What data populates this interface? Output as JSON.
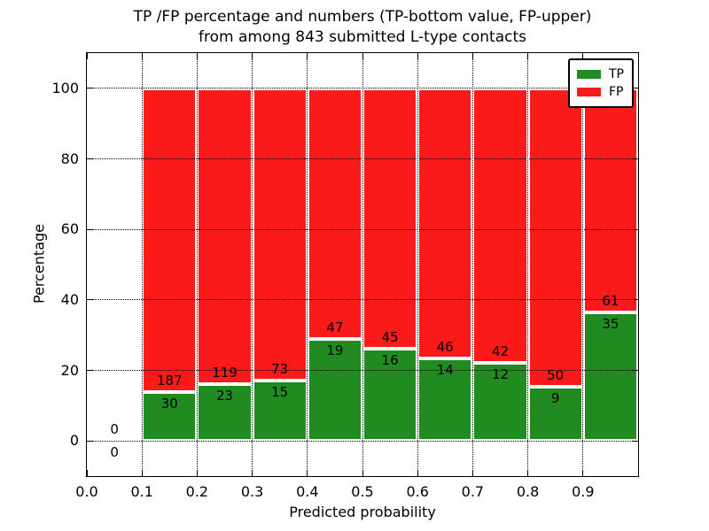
{
  "title": {
    "line1": "TP /FP percentage and numbers (TP-bottom value, FP-upper)",
    "line2": "from among 843 submitted L-type contacts"
  },
  "chart_data": {
    "type": "bar",
    "subtype": "stacked-percentage-histogram",
    "title": "TP /FP percentage and numbers (TP-bottom value, FP-upper) from among 843 submitted L-type contacts",
    "xlabel": "Predicted probability",
    "ylabel": "Percentage",
    "xlim": [
      0.0,
      1.0
    ],
    "ylim": [
      -10,
      110
    ],
    "xtick_values": [
      0.0,
      0.1,
      0.2,
      0.3,
      0.4,
      0.5,
      0.6,
      0.7,
      0.8,
      0.9
    ],
    "xtick_labels": [
      "0.0",
      "0.1",
      "0.2",
      "0.3",
      "0.4",
      "0.5",
      "0.6",
      "0.7",
      "0.8",
      "0.9"
    ],
    "ytick_values": [
      0,
      20,
      40,
      60,
      80,
      100
    ],
    "ytick_labels": [
      "0",
      "20",
      "40",
      "60",
      "80",
      "100"
    ],
    "grid": true,
    "legend": {
      "position": "upper right",
      "entries": [
        {
          "label": "TP",
          "color": "#208b20"
        },
        {
          "label": "FP",
          "color": "#fb1a1a"
        }
      ]
    },
    "bins": [
      {
        "x_start": 0.0,
        "x_end": 0.1,
        "tp": 0,
        "fp": 0,
        "tp_pct": 0.0,
        "fp_pct": 0.0
      },
      {
        "x_start": 0.1,
        "x_end": 0.2,
        "tp": 30,
        "fp": 187,
        "tp_pct": 13.82,
        "fp_pct": 86.18
      },
      {
        "x_start": 0.2,
        "x_end": 0.3,
        "tp": 23,
        "fp": 119,
        "tp_pct": 16.2,
        "fp_pct": 83.8
      },
      {
        "x_start": 0.3,
        "x_end": 0.4,
        "tp": 15,
        "fp": 73,
        "tp_pct": 17.05,
        "fp_pct": 82.95
      },
      {
        "x_start": 0.4,
        "x_end": 0.5,
        "tp": 19,
        "fp": 47,
        "tp_pct": 28.79,
        "fp_pct": 71.21
      },
      {
        "x_start": 0.5,
        "x_end": 0.6,
        "tp": 16,
        "fp": 45,
        "tp_pct": 26.23,
        "fp_pct": 73.77
      },
      {
        "x_start": 0.6,
        "x_end": 0.7,
        "tp": 14,
        "fp": 46,
        "tp_pct": 23.33,
        "fp_pct": 76.67
      },
      {
        "x_start": 0.7,
        "x_end": 0.8,
        "tp": 12,
        "fp": 42,
        "tp_pct": 22.22,
        "fp_pct": 77.78
      },
      {
        "x_start": 0.8,
        "x_end": 0.9,
        "tp": 9,
        "fp": 50,
        "tp_pct": 15.25,
        "fp_pct": 84.75
      },
      {
        "x_start": 0.9,
        "x_end": 1.0,
        "tp": 35,
        "fp": 61,
        "tp_pct": 36.46,
        "fp_pct": 63.54
      }
    ]
  },
  "colors": {
    "tp": "#208b20",
    "fp": "#fb1a1a",
    "grid": "#000000",
    "text": "#000000",
    "background": "#ffffff"
  }
}
